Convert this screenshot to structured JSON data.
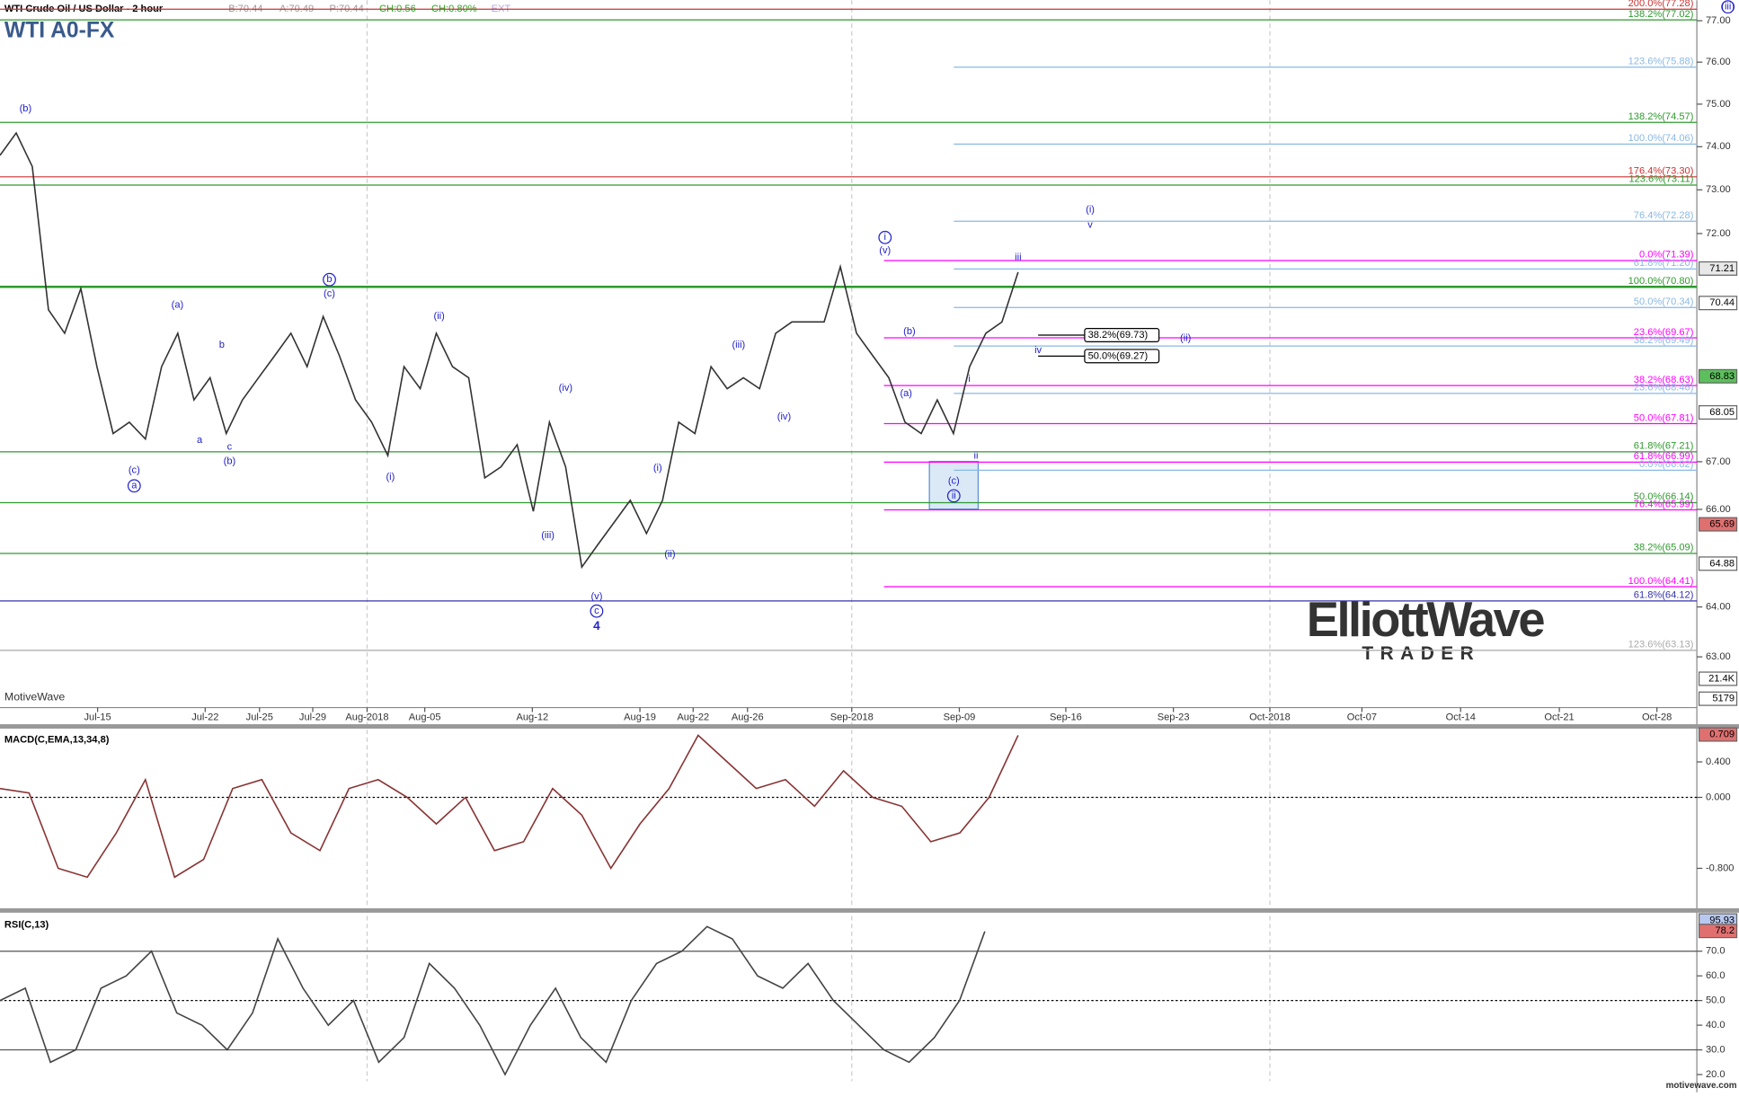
{
  "chart_data": {
    "type": "line",
    "title": "WTI A0-FX",
    "header": [
      "WTI Crude Oil / US Dollar - 2 hour",
      "B:70.44",
      "A:70.49",
      "P:70.44",
      "CH:0.56",
      "CH:0.80%",
      "EXT"
    ],
    "watermark": "MotiveWave",
    "footer": "motivewave.com",
    "logo": [
      "ElliottWave",
      "TRADER"
    ],
    "log_scale": true,
    "ylim": [
      62.0,
      77.5
    ],
    "yticks": [
      {
        "value": 63,
        "label": "63.00"
      },
      {
        "value": 64,
        "label": "64.00"
      },
      {
        "value": 66,
        "label": "66.00"
      },
      {
        "value": 67,
        "label": "67.00"
      },
      {
        "value": 72,
        "label": "72.00"
      },
      {
        "value": 73,
        "label": "73.00"
      },
      {
        "value": 74,
        "label": "74.00"
      },
      {
        "value": 75,
        "label": "75.00"
      },
      {
        "value": 76,
        "label": "76.00"
      },
      {
        "value": 77,
        "label": "77.00"
      }
    ],
    "x_labels": [
      "Jul-15",
      "Jul-22",
      "Jul-25",
      "Jul-29",
      "Aug-2018",
      "Aug-05",
      "Aug-12",
      "Aug-19",
      "Aug-22",
      "Aug-26",
      "Sep-2018",
      "Sep-09",
      "Sep-16",
      "Sep-23",
      "Oct-2018",
      "Oct-07",
      "Oct-14",
      "Oct-21",
      "Oct-28"
    ],
    "series": [
      {
        "name": "WTI",
        "color": "#333333",
        "values": [
          73.8,
          74.32,
          73.54,
          70.29,
          69.77,
          70.76,
          69.04,
          67.6,
          67.84,
          67.48,
          69.04,
          69.77,
          68.32,
          68.8,
          67.6,
          68.32,
          68.8,
          69.28,
          69.77,
          69.04,
          70.14,
          69.28,
          68.32,
          67.84,
          67.13,
          69.04,
          68.56,
          69.77,
          69.04,
          68.8,
          66.66,
          66.89,
          67.36,
          65.96,
          67.84,
          66.89,
          64.81,
          65.27,
          65.73,
          66.19,
          65.5,
          66.19,
          67.84,
          67.6,
          69.04,
          68.56,
          68.8,
          68.56,
          69.77,
          70.02,
          70.02,
          70.02,
          71.25,
          69.77,
          69.28,
          68.8,
          67.84,
          67.6,
          68.32,
          67.6,
          69.04,
          69.77,
          70.02,
          71.13
        ]
      }
    ],
    "fib_levels": [
      {
        "label": "200.0%(77.28)",
        "level": 77.28,
        "color": "#cc3333"
      },
      {
        "label": "138.2%(77.02)",
        "level": 77.02,
        "color": "#2e9a2e"
      },
      {
        "label": "123.6%(75.88)",
        "level": 75.88,
        "color": "#8ab8e6"
      },
      {
        "label": "138.2%(74.57)",
        "level": 74.57,
        "color": "#2e9a2e"
      },
      {
        "label": "100.0%(74.06)",
        "level": 74.06,
        "color": "#8ab8e6"
      },
      {
        "label": "176.4%(73.30)",
        "level": 73.3,
        "color": "#cc3333"
      },
      {
        "label": "123.6%(73.11)",
        "level": 73.11,
        "color": "#2e9a2e"
      },
      {
        "label": "76.4%(72.28)",
        "level": 72.28,
        "color": "#8ab8e6"
      },
      {
        "label": "0.0%(71.39)",
        "level": 71.39,
        "color": "#ff00ff"
      },
      {
        "label": "61.8%(71.20)",
        "level": 71.2,
        "color": "#8ab8e6"
      },
      {
        "label": "100.0%(70.80)",
        "level": 70.8,
        "color": "#2e9a2e"
      },
      {
        "label": "50.0%(70.34)",
        "level": 70.34,
        "color": "#8ab8e6"
      },
      {
        "label": "23.6%(69.67)",
        "level": 69.67,
        "color": "#ff00ff"
      },
      {
        "label": "38.2%(69.49)",
        "level": 69.49,
        "color": "#8ab8e6"
      },
      {
        "label": "38.2%(68.63)",
        "level": 68.63,
        "color": "#ff00ff"
      },
      {
        "label": "23.6%(68.46)",
        "level": 68.46,
        "color": "#8ab8e6"
      },
      {
        "label": "50.0%(67.81)",
        "level": 67.81,
        "color": "#ff00ff"
      },
      {
        "label": "61.8%(67.21)",
        "level": 67.21,
        "color": "#2e9a2e"
      },
      {
        "label": "61.8%(66.99)",
        "level": 66.99,
        "color": "#ff00ff"
      },
      {
        "label": "0.0%(66.82)",
        "level": 66.82,
        "color": "#8ab8e6"
      },
      {
        "label": "50.0%(66.14)",
        "level": 66.14,
        "color": "#2e9a2e"
      },
      {
        "label": "76.4%(65.99)",
        "level": 65.99,
        "color": "#ff00ff"
      },
      {
        "label": "38.2%(65.09)",
        "level": 65.09,
        "color": "#2e9a2e"
      },
      {
        "label": "100.0%(64.41)",
        "level": 64.41,
        "color": "#ff00ff"
      },
      {
        "label": "61.8%(64.12)",
        "level": 64.12,
        "color": "#3333aa"
      },
      {
        "label": "123.6%(63.13)",
        "level": 63.13,
        "color": "#aaaaaa"
      }
    ],
    "boxed_levels": [
      {
        "label": "38.2%(69.73)",
        "level": 69.73
      },
      {
        "label": "50.0%(69.27)",
        "level": 69.27
      }
    ],
    "price_tags": [
      71.21,
      70.44,
      68.83,
      68.05,
      65.69,
      64.88
    ],
    "volume_tags": [
      {
        "value": 21400,
        "label": "21.4K"
      },
      5179
    ],
    "wave_labels": [
      "(b)",
      "(c)",
      "a",
      "(a)",
      "b",
      "a",
      "c",
      "(b)",
      "b",
      "(c)",
      "(ii)",
      "(i)",
      "(iv)",
      "(iii)",
      "(v)",
      "c",
      "4",
      "(i)",
      "(ii)",
      "(iii)",
      "(iv)",
      "i",
      "(v)",
      "(b)",
      "(a)",
      "i",
      "ii",
      "(c)",
      "ii",
      "iii",
      "iv",
      "(ii)",
      "(i)",
      "v",
      "(iii)"
    ],
    "macd": {
      "title": "MACD(C,EMA,13,34,8)",
      "ylim": [
        -1.2,
        0.775
      ],
      "yticks": [
        {
          "value": 0.4,
          "label": "0.400"
        },
        {
          "value": 0,
          "label": "0.000"
        },
        {
          "value": -0.8,
          "label": "-0.800"
        }
      ],
      "color": "#883333",
      "values": [
        0.1,
        0.05,
        -0.8,
        -0.9,
        -0.4,
        0.2,
        -0.9,
        -0.7,
        0.1,
        0.2,
        -0.4,
        -0.6,
        0.1,
        0.2,
        0.0,
        -0.3,
        0.0,
        -0.6,
        -0.5,
        0.1,
        -0.2,
        -0.8,
        -0.3,
        0.1,
        0.7,
        0.4,
        0.1,
        0.2,
        -0.1,
        0.3,
        0.0,
        -0.1,
        -0.5,
        -0.4,
        0.0,
        0.7
      ],
      "tag": 0.709
    },
    "rsi": {
      "title": "RSI(C,13)",
      "ylim": [
        17.3,
        85.6
      ],
      "yticks": [
        {
          "value": 70,
          "label": "70.0"
        },
        {
          "value": 60,
          "label": "60.0"
        },
        {
          "value": 50,
          "label": "50.0"
        },
        {
          "value": 40,
          "label": "40.0"
        },
        {
          "value": 30,
          "label": "30.0"
        },
        {
          "value": 20,
          "label": "20.0"
        }
      ],
      "color": "#444444",
      "values": [
        50,
        55,
        25,
        30,
        55,
        60,
        70,
        45,
        40,
        30,
        45,
        75,
        55,
        40,
        50,
        25,
        35,
        65,
        55,
        40,
        20,
        40,
        55,
        35,
        25,
        50,
        65,
        70,
        80,
        75,
        60,
        55,
        65,
        50,
        40,
        30,
        25,
        35,
        50,
        78
      ],
      "tags": [
        95.93,
        78.2
      ]
    }
  }
}
